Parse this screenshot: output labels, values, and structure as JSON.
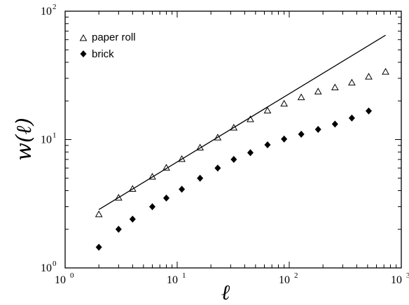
{
  "chart_data": {
    "type": "scatter",
    "title": "",
    "xlabel": "ℓ",
    "ylabel": "w(ℓ)",
    "xscale": "log",
    "yscale": "log",
    "xlim": [
      1,
      1000
    ],
    "ylim": [
      1,
      100
    ],
    "grid": false,
    "legend_position": "top-left",
    "x_ticks": [
      {
        "base": "10",
        "exp": "0",
        "value": 1
      },
      {
        "base": "10",
        "exp": "1",
        "value": 10
      },
      {
        "base": "10",
        "exp": "2",
        "value": 100
      },
      {
        "base": "10",
        "exp": "3",
        "value": 1000
      }
    ],
    "y_ticks": [
      {
        "base": "10",
        "exp": "0",
        "value": 1
      },
      {
        "base": "10",
        "exp": "1",
        "value": 10
      },
      {
        "base": "10",
        "exp": "2",
        "value": 100
      }
    ],
    "series": [
      {
        "name": "paper roll",
        "marker": "open-triangle",
        "x": [
          2,
          3,
          4,
          6,
          8,
          11,
          16,
          23,
          32,
          45,
          64,
          90,
          128,
          181,
          256,
          362,
          512,
          724
        ],
        "y": [
          2.6,
          3.5,
          4.1,
          5.1,
          6.0,
          7.0,
          8.6,
          10.3,
          12.3,
          14.3,
          16.7,
          18.9,
          21.2,
          23.5,
          25.3,
          27.6,
          30.7,
          33.5
        ]
      },
      {
        "name": "brick",
        "marker": "filled-diamond",
        "x": [
          2,
          3,
          4,
          6,
          8,
          11,
          16,
          23,
          32,
          45,
          64,
          90,
          128,
          181,
          256,
          362,
          512
        ],
        "y": [
          1.45,
          2.0,
          2.4,
          3.0,
          3.5,
          4.1,
          5.0,
          6.0,
          7.0,
          7.9,
          9.1,
          10.1,
          11.0,
          12.0,
          13.2,
          14.7,
          16.7
        ]
      },
      {
        "name": "",
        "marker": "line",
        "x": [
          2,
          724
        ],
        "y": [
          2.85,
          65
        ]
      }
    ]
  }
}
